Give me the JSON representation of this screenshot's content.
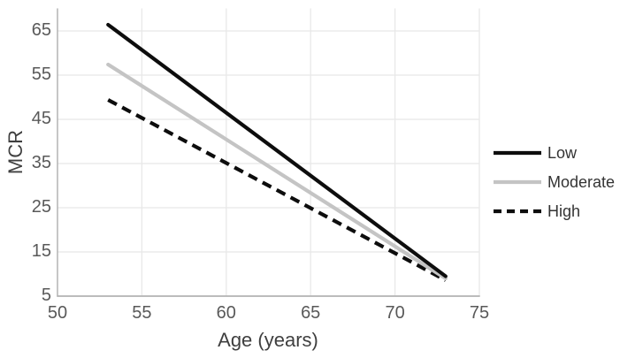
{
  "chart_data": {
    "type": "line",
    "title": "",
    "xlabel": "Age (years)",
    "ylabel": "MCR",
    "xlim": [
      50,
      75
    ],
    "ylim": [
      5,
      70
    ],
    "xticks": [
      50,
      55,
      60,
      65,
      70,
      75
    ],
    "yticks": [
      5,
      15,
      25,
      35,
      45,
      55,
      65
    ],
    "grid": true,
    "legend_position": "right",
    "series": [
      {
        "name": "Low",
        "style": "solid",
        "color": "#0d0d0d",
        "x": [
          53,
          73
        ],
        "y": [
          66.4,
          9.5
        ]
      },
      {
        "name": "Moderate",
        "style": "solid",
        "color": "#c4c4c4",
        "x": [
          53,
          73
        ],
        "y": [
          57.4,
          9.0
        ]
      },
      {
        "name": "High",
        "style": "dashed",
        "color": "#0d0d0d",
        "x": [
          53,
          73
        ],
        "y": [
          49.4,
          8.6
        ]
      }
    ]
  },
  "colors": {
    "background": "#ffffff",
    "gridline": "#e8e8e8",
    "axis_line": "#b3b3b3",
    "tick_label": "#595959",
    "axis_title": "#3f3f3f",
    "legend_label": "#333333"
  }
}
